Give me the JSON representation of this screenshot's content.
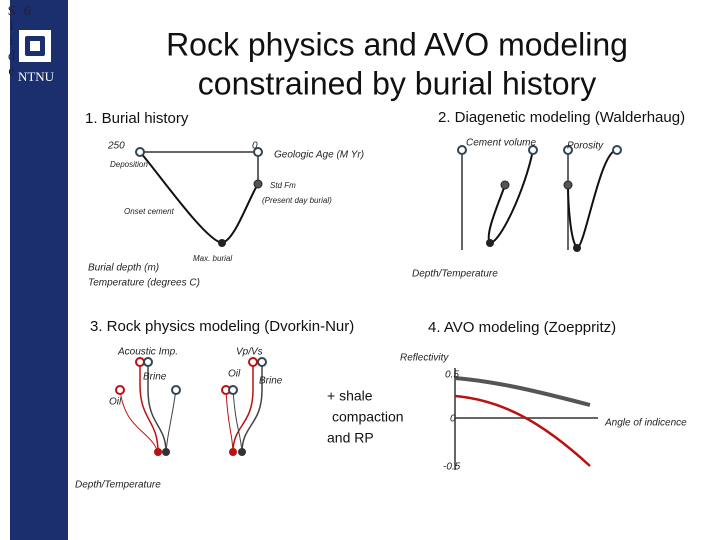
{
  "slide": {
    "word": "Slide",
    "number": "6"
  },
  "logo": "NTNU",
  "header": {
    "title_line1": "Rock physics and AVO modeling",
    "title_line2": "constrained by burial history"
  },
  "burial": {
    "heading": "1. Burial history",
    "age_start": "250",
    "age_end": "0",
    "axis_label": "Geologic Age (M Yr)",
    "deposition": "Deposition",
    "formation": "Std Fm",
    "present": "(Present day burial)",
    "onset": "Onset cement",
    "max": "Max. burial",
    "depth_label": "Burial depth (m)",
    "temp_label": "Temperature (degrees C)"
  },
  "diagenetic": {
    "heading": "2. Diagenetic modeling (Walderhaug)",
    "cement": "Cement volume",
    "porosity": "Porosity",
    "axis": "Depth/Temperature"
  },
  "rock_physics": {
    "heading": "3. Rock physics modeling (Dvorkin-Nur)",
    "ai": "Acoustic Imp.",
    "vpvs": "Vp/Vs",
    "brine1": "Brine",
    "oil1": "Oil",
    "oil2": "Oil",
    "brine2": "Brine",
    "axis": "Depth/Temperature"
  },
  "note": {
    "line1": "+  shale",
    "line2": "compaction",
    "line3": "and RP"
  },
  "avo": {
    "heading": "4. AVO modeling (Zoeppritz)",
    "y_label": "Reflectivity",
    "top": "0.5",
    "zero": "0",
    "bottom": "-0.5",
    "x_label": "Angle of indicence"
  }
}
